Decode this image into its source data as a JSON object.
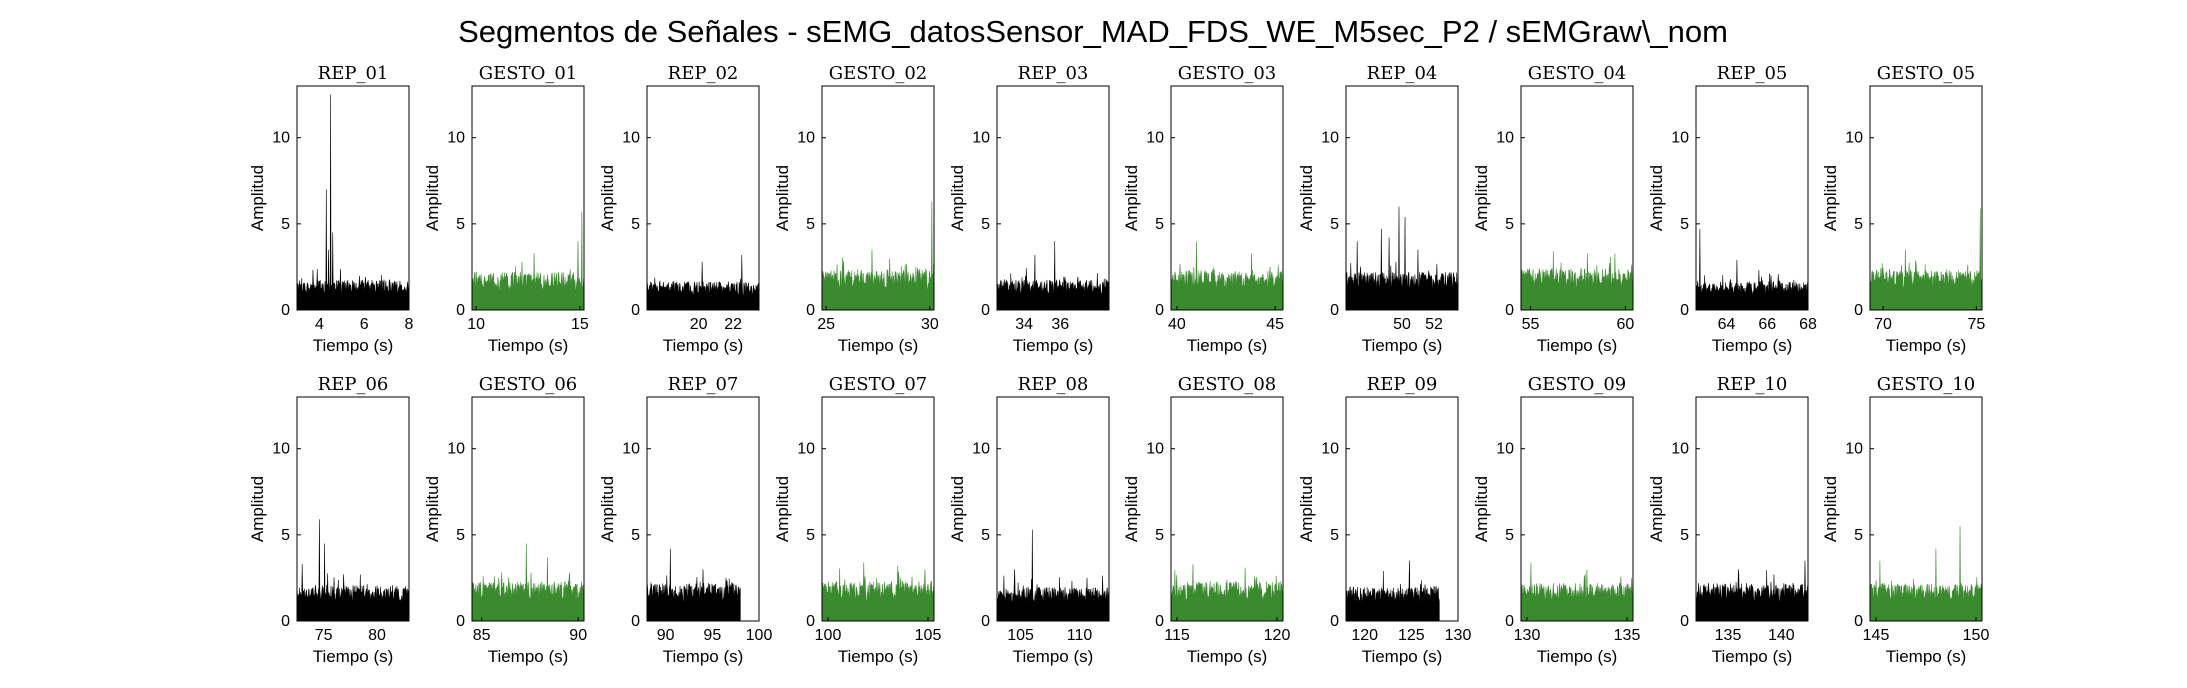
{
  "figure_title": "Segmentos de Señales - sEMG_datosSensor_MAD_FDS_WE_M5sec_P2 / sEMGraw\\_nom",
  "colors": {
    "rep": "#000000",
    "gesto": "#3a8a2e",
    "axis": "#000000"
  },
  "chart_data": [
    {
      "type": "area",
      "title": "REP_01",
      "xlabel": "Tiempo (s)",
      "ylabel": "Amplitud",
      "xlim": [
        3,
        8
      ],
      "ylim": [
        0,
        13
      ],
      "xticks": [
        4,
        6,
        8
      ],
      "yticks": [
        0,
        5,
        10
      ],
      "x_range": [
        3,
        8
      ],
      "baseline": 1.6,
      "peaks": [
        {
          "x": 4.5,
          "y": 12.5
        },
        {
          "x": 4.3,
          "y": 7.0
        },
        {
          "x": 4.6,
          "y": 4.5
        },
        {
          "x": 4.4,
          "y": 3.5
        }
      ],
      "series_color": "rep"
    },
    {
      "type": "area",
      "title": "GESTO_01",
      "xlabel": "Tiempo (s)",
      "ylabel": "Amplitud",
      "xlim": [
        9.8,
        15.2
      ],
      "ylim": [
        0,
        13
      ],
      "xticks": [
        10,
        15
      ],
      "yticks": [
        0,
        5,
        10
      ],
      "x_range": [
        9.8,
        15.2
      ],
      "baseline": 2.0,
      "peaks": [
        {
          "x": 15.1,
          "y": 5.7
        },
        {
          "x": 14.9,
          "y": 4.0
        },
        {
          "x": 12.8,
          "y": 3.3
        }
      ],
      "series_color": "gesto"
    },
    {
      "type": "area",
      "title": "REP_02",
      "xlabel": "Tiempo (s)",
      "ylabel": "Amplitud",
      "xlim": [
        17,
        23.5
      ],
      "ylim": [
        0,
        13
      ],
      "xticks": [
        20,
        22
      ],
      "yticks": [
        0,
        5,
        10
      ],
      "x_range": [
        17,
        23.5
      ],
      "baseline": 1.5,
      "peaks": [
        {
          "x": 22.5,
          "y": 3.2
        },
        {
          "x": 20.2,
          "y": 2.8
        }
      ],
      "series_color": "rep"
    },
    {
      "type": "area",
      "title": "GESTO_02",
      "xlabel": "Tiempo (s)",
      "ylabel": "Amplitud",
      "xlim": [
        24.8,
        30.2
      ],
      "ylim": [
        0,
        13
      ],
      "xticks": [
        25,
        30
      ],
      "yticks": [
        0,
        5,
        10
      ],
      "x_range": [
        24.8,
        30.2
      ],
      "baseline": 2.1,
      "peaks": [
        {
          "x": 30.1,
          "y": 6.3
        },
        {
          "x": 27.2,
          "y": 3.5
        }
      ],
      "series_color": "gesto"
    },
    {
      "type": "area",
      "title": "REP_03",
      "xlabel": "Tiempo (s)",
      "ylabel": "Amplitud",
      "xlim": [
        32.5,
        38.7
      ],
      "ylim": [
        0,
        13
      ],
      "xticks": [
        34,
        36
      ],
      "yticks": [
        0,
        5,
        10
      ],
      "x_range": [
        32.5,
        38.7
      ],
      "baseline": 1.6,
      "peaks": [
        {
          "x": 35.7,
          "y": 4.0
        },
        {
          "x": 34.6,
          "y": 3.2
        }
      ],
      "series_color": "rep"
    },
    {
      "type": "area",
      "title": "GESTO_03",
      "xlabel": "Tiempo (s)",
      "ylabel": "Amplitud",
      "xlim": [
        39.7,
        45.4
      ],
      "ylim": [
        0,
        13
      ],
      "xticks": [
        40,
        45
      ],
      "yticks": [
        0,
        5,
        10
      ],
      "x_range": [
        39.7,
        45.4
      ],
      "baseline": 2.1,
      "peaks": [
        {
          "x": 41.0,
          "y": 4.0
        },
        {
          "x": 43.8,
          "y": 3.3
        }
      ],
      "series_color": "gesto"
    },
    {
      "type": "area",
      "title": "REP_04",
      "xlabel": "Tiempo (s)",
      "ylabel": "Amplitud",
      "xlim": [
        46.5,
        53.5
      ],
      "ylim": [
        0,
        13
      ],
      "xticks": [
        50,
        52
      ],
      "yticks": [
        0,
        5,
        10
      ],
      "x_range": [
        46.5,
        53.5
      ],
      "baseline": 2.0,
      "peaks": [
        {
          "x": 49.8,
          "y": 6.0
        },
        {
          "x": 48.7,
          "y": 4.7
        },
        {
          "x": 50.2,
          "y": 5.4
        },
        {
          "x": 49.2,
          "y": 4.2
        },
        {
          "x": 47.2,
          "y": 4.0
        },
        {
          "x": 51.0,
          "y": 3.5
        }
      ],
      "series_color": "rep"
    },
    {
      "type": "area",
      "title": "GESTO_04",
      "xlabel": "Tiempo (s)",
      "ylabel": "Amplitud",
      "xlim": [
        54.5,
        60.4
      ],
      "ylim": [
        0,
        13
      ],
      "xticks": [
        55,
        60
      ],
      "yticks": [
        0,
        5,
        10
      ],
      "x_range": [
        54.5,
        60.4
      ],
      "baseline": 2.2,
      "peaks": [
        {
          "x": 56.2,
          "y": 3.4
        },
        {
          "x": 58.0,
          "y": 3.3
        }
      ],
      "series_color": "gesto"
    },
    {
      "type": "area",
      "title": "REP_05",
      "xlabel": "Tiempo (s)",
      "ylabel": "Amplitud",
      "xlim": [
        62.5,
        68
      ],
      "ylim": [
        0,
        13
      ],
      "xticks": [
        64,
        66,
        68
      ],
      "yticks": [
        0,
        5,
        10
      ],
      "x_range": [
        62.5,
        68
      ],
      "baseline": 1.5,
      "peaks": [
        {
          "x": 62.7,
          "y": 4.7
        },
        {
          "x": 64.5,
          "y": 2.9
        }
      ],
      "series_color": "rep"
    },
    {
      "type": "area",
      "title": "GESTO_05",
      "xlabel": "Tiempo (s)",
      "ylabel": "Amplitud",
      "xlim": [
        69.3,
        75.3
      ],
      "ylim": [
        0,
        13
      ],
      "xticks": [
        70,
        75
      ],
      "yticks": [
        0,
        5,
        10
      ],
      "x_range": [
        69.3,
        75.3
      ],
      "baseline": 2.1,
      "peaks": [
        {
          "x": 75.2,
          "y": 5.9
        },
        {
          "x": 71.2,
          "y": 3.5
        }
      ],
      "series_color": "gesto"
    },
    {
      "type": "area",
      "title": "REP_06",
      "xlabel": "Tiempo (s)",
      "ylabel": "Amplitud",
      "xlim": [
        72.5,
        83
      ],
      "ylim": [
        0,
        13
      ],
      "xticks": [
        75,
        80
      ],
      "yticks": [
        0,
        5,
        10
      ],
      "x_range": [
        72.5,
        83
      ],
      "baseline": 1.9,
      "peaks": [
        {
          "x": 74.6,
          "y": 5.9
        },
        {
          "x": 75.1,
          "y": 4.5
        },
        {
          "x": 73.0,
          "y": 3.3
        }
      ],
      "series_color": "rep"
    },
    {
      "type": "area",
      "title": "GESTO_06",
      "xlabel": "Tiempo (s)",
      "ylabel": "Amplitud",
      "xlim": [
        84.5,
        90.3
      ],
      "ylim": [
        0,
        13
      ],
      "xticks": [
        85,
        90
      ],
      "yticks": [
        0,
        5,
        10
      ],
      "x_range": [
        84.5,
        90.3
      ],
      "baseline": 2.1,
      "peaks": [
        {
          "x": 87.3,
          "y": 4.5
        },
        {
          "x": 88.4,
          "y": 3.7
        }
      ],
      "series_color": "gesto"
    },
    {
      "type": "area",
      "title": "REP_07",
      "xlabel": "Tiempo (s)",
      "ylabel": "Amplitud",
      "xlim": [
        88,
        100
      ],
      "ylim": [
        0,
        13
      ],
      "xticks": [
        90,
        95,
        100
      ],
      "yticks": [
        0,
        5,
        10
      ],
      "x_range": [
        88,
        98
      ],
      "baseline": 2.0,
      "peaks": [
        {
          "x": 90.5,
          "y": 4.2
        },
        {
          "x": 94.0,
          "y": 3.0
        }
      ],
      "series_color": "rep"
    },
    {
      "type": "area",
      "title": "GESTO_07",
      "xlabel": "Tiempo (s)",
      "ylabel": "Amplitud",
      "xlim": [
        99.7,
        105.3
      ],
      "ylim": [
        0,
        13
      ],
      "xticks": [
        100,
        105
      ],
      "yticks": [
        0,
        5,
        10
      ],
      "x_range": [
        99.7,
        105.3
      ],
      "baseline": 2.1,
      "peaks": [
        {
          "x": 101.8,
          "y": 3.4
        },
        {
          "x": 103.5,
          "y": 3.2
        }
      ],
      "series_color": "gesto"
    },
    {
      "type": "area",
      "title": "REP_08",
      "xlabel": "Tiempo (s)",
      "ylabel": "Amplitud",
      "xlim": [
        103,
        112.5
      ],
      "ylim": [
        0,
        13
      ],
      "xticks": [
        105,
        110
      ],
      "yticks": [
        0,
        5,
        10
      ],
      "x_range": [
        103,
        112.5
      ],
      "baseline": 1.8,
      "peaks": [
        {
          "x": 106.0,
          "y": 5.3
        },
        {
          "x": 104.5,
          "y": 3.0
        }
      ],
      "series_color": "rep"
    },
    {
      "type": "area",
      "title": "GESTO_08",
      "xlabel": "Tiempo (s)",
      "ylabel": "Amplitud",
      "xlim": [
        114.7,
        120.3
      ],
      "ylim": [
        0,
        13
      ],
      "xticks": [
        115,
        120
      ],
      "yticks": [
        0,
        5,
        10
      ],
      "x_range": [
        114.7,
        120.3
      ],
      "baseline": 2.1,
      "peaks": [
        {
          "x": 115.8,
          "y": 3.3
        },
        {
          "x": 118.4,
          "y": 3.1
        }
      ],
      "series_color": "gesto"
    },
    {
      "type": "area",
      "title": "REP_09",
      "xlabel": "Tiempo (s)",
      "ylabel": "Amplitud",
      "xlim": [
        118,
        130
      ],
      "ylim": [
        0,
        13
      ],
      "xticks": [
        120,
        125,
        130
      ],
      "yticks": [
        0,
        5,
        10
      ],
      "x_range": [
        118,
        128
      ],
      "baseline": 1.8,
      "peaks": [
        {
          "x": 124.8,
          "y": 3.5
        },
        {
          "x": 122.0,
          "y": 2.9
        }
      ],
      "series_color": "rep"
    },
    {
      "type": "area",
      "title": "GESTO_09",
      "xlabel": "Tiempo (s)",
      "ylabel": "Amplitud",
      "xlim": [
        129.7,
        135.3
      ],
      "ylim": [
        0,
        13
      ],
      "xticks": [
        130,
        135
      ],
      "yticks": [
        0,
        5,
        10
      ],
      "x_range": [
        129.7,
        135.3
      ],
      "baseline": 2.0,
      "peaks": [
        {
          "x": 130.2,
          "y": 3.4
        },
        {
          "x": 133.0,
          "y": 3.0
        }
      ],
      "series_color": "gesto"
    },
    {
      "type": "area",
      "title": "REP_10",
      "xlabel": "Tiempo (s)",
      "ylabel": "Amplitud",
      "xlim": [
        132,
        142.5
      ],
      "ylim": [
        0,
        13
      ],
      "xticks": [
        135,
        140
      ],
      "yticks": [
        0,
        5,
        10
      ],
      "x_range": [
        132,
        142.5
      ],
      "baseline": 2.0,
      "peaks": [
        {
          "x": 142.2,
          "y": 3.5
        },
        {
          "x": 136.0,
          "y": 3.0
        }
      ],
      "series_color": "rep"
    },
    {
      "type": "area",
      "title": "GESTO_10",
      "xlabel": "Tiempo (s)",
      "ylabel": "Amplitud",
      "xlim": [
        144.7,
        150.3
      ],
      "ylim": [
        0,
        13
      ],
      "xticks": [
        145,
        150
      ],
      "yticks": [
        0,
        5,
        10
      ],
      "x_range": [
        144.7,
        150.3
      ],
      "baseline": 2.0,
      "peaks": [
        {
          "x": 149.2,
          "y": 5.5
        },
        {
          "x": 148.0,
          "y": 4.2
        },
        {
          "x": 145.2,
          "y": 3.5
        }
      ],
      "series_color": "gesto"
    }
  ]
}
